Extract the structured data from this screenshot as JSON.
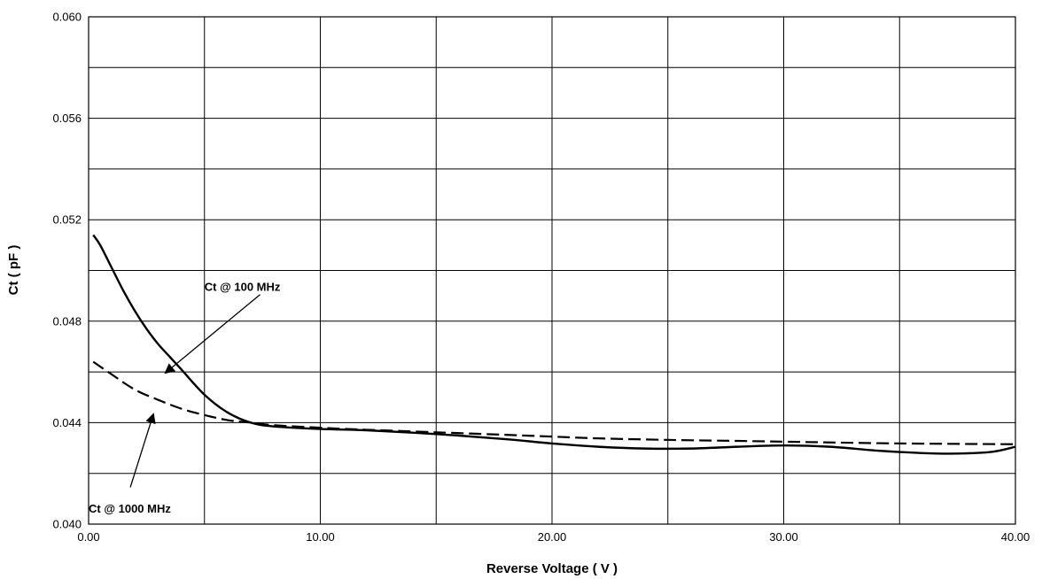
{
  "chart_data": {
    "type": "line",
    "title": "",
    "xlabel": "Reverse Voltage ( V )",
    "ylabel": "Ct ( pF )",
    "xlim": [
      0,
      40
    ],
    "ylim": [
      0.04,
      0.06
    ],
    "x_major_step": 5,
    "y_major_step": 0.002,
    "x_tick_labels": [
      "0.00",
      "10.00",
      "20.00",
      "30.00",
      "40.00"
    ],
    "y_tick_labels": [
      "0.040",
      "0.044",
      "0.048",
      "0.052",
      "0.056",
      "0.060"
    ],
    "grid": true,
    "series": [
      {
        "key": "s100",
        "style": "solid",
        "color": "#000000",
        "x": [
          0.2,
          0.5,
          1,
          1.5,
          2,
          2.5,
          3,
          3.5,
          4,
          5,
          6,
          7,
          8,
          10,
          12,
          15,
          18,
          20,
          22,
          24,
          26,
          28,
          30,
          32,
          34,
          36,
          37.5,
          39,
          40
        ],
        "y": [
          0.0514,
          0.051,
          0.0501,
          0.0492,
          0.0484,
          0.0477,
          0.0471,
          0.0466,
          0.0461,
          0.0451,
          0.0444,
          0.044,
          0.04385,
          0.04375,
          0.0437,
          0.04355,
          0.04335,
          0.04318,
          0.04305,
          0.04298,
          0.04298,
          0.04305,
          0.0431,
          0.04305,
          0.0429,
          0.0428,
          0.04278,
          0.04285,
          0.04305
        ]
      },
      {
        "key": "s1000",
        "style": "dashed",
        "color": "#000000",
        "x": [
          0.2,
          1,
          2,
          3,
          4,
          5,
          6,
          7,
          8,
          10,
          12,
          15,
          18,
          20,
          22,
          25,
          28,
          30,
          32,
          35,
          38,
          40
        ],
        "y": [
          0.0464,
          0.0459,
          0.0453,
          0.0449,
          0.04455,
          0.0443,
          0.0441,
          0.044,
          0.0439,
          0.0438,
          0.04372,
          0.04362,
          0.04352,
          0.04345,
          0.04338,
          0.04332,
          0.04328,
          0.04325,
          0.04322,
          0.04318,
          0.04316,
          0.04315
        ]
      }
    ],
    "annotations": [
      {
        "key": "a100",
        "text": "Ct @ 100 MHz",
        "text_at": [
          5.0,
          0.0492
        ],
        "arrow_from": [
          7.4,
          0.04905
        ],
        "arrow_to": [
          3.3,
          0.04595
        ]
      },
      {
        "key": "a1000",
        "text": "Ct @ 1000 MHz",
        "text_at": [
          0.0,
          0.04045
        ],
        "arrow_from": [
          1.8,
          0.04145
        ],
        "arrow_to": [
          2.8,
          0.04435
        ]
      }
    ]
  }
}
